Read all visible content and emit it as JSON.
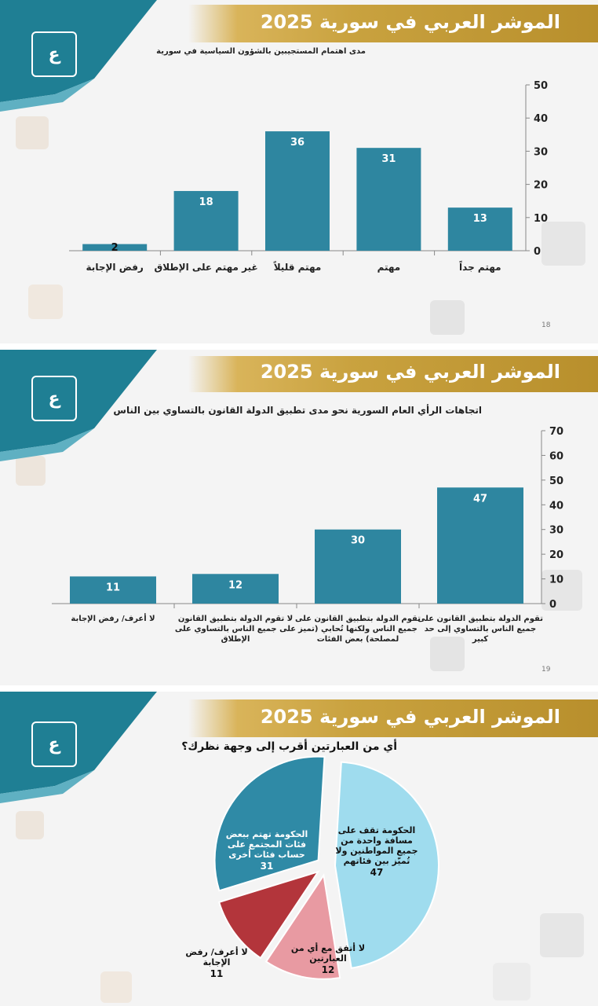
{
  "banner_title": "الموشر العربي في سورية 2025",
  "colors": {
    "bar": "#2e86a0",
    "pie_blue": "#2f8aa6",
    "pie_light": "#9fdcee",
    "pie_pink": "#e89aa2",
    "pie_red": "#b3353b",
    "gold": "#c9a23f",
    "teal": "#1f7f94"
  },
  "slides": [
    {
      "page": "18",
      "title": "مدى اهتمام المستجيبين بالشؤون السياسية في سورية"
    },
    {
      "page": "19",
      "title": "اتجاهات الرأي العام السورية نحو مدى تطبيق الدولة القانون بالتساوي بين الناس"
    },
    {
      "page": "",
      "title": "أي من العبارتين أقرب إلى وجهة نظرك؟"
    }
  ],
  "chart_data": [
    {
      "type": "bar",
      "title": "مدى اهتمام المستجيبين بالشؤون السياسية في سورية",
      "categories": [
        "رفض الإجابة",
        "غير مهتم على الإطلاق",
        "مهتم قليلاً",
        "مهتم",
        "مهتم جداً"
      ],
      "values": [
        2,
        18,
        36,
        31,
        13
      ],
      "ylim": [
        0,
        50
      ],
      "yticks": [
        0,
        10,
        20,
        30,
        40,
        50
      ],
      "axis_side": "right"
    },
    {
      "type": "bar",
      "title": "اتجاهات الرأي العام السورية نحو مدى تطبيق الدولة القانون بالتساوي بين الناس",
      "categories": [
        [
          "لا أعرف/ رفض الإجابة"
        ],
        [
          "لا تقوم الدولة بتطبيق القانون",
          "على جميع الناس بالتساوي على",
          "الإطلاق"
        ],
        [
          "تقوم الدولة بتطبيق القانون على",
          "جميع الناس ولكنها تُحابي (تميز",
          "لمصلحة) بعض الفئات"
        ],
        [
          "تقوم الدولة بتطبيق القانون على",
          "جميع الناس بالتساوي إلى حد",
          "كبير"
        ]
      ],
      "values": [
        11,
        12,
        30,
        47
      ],
      "ylim": [
        0,
        70
      ],
      "yticks": [
        0,
        10,
        20,
        30,
        40,
        50,
        60,
        70
      ],
      "axis_side": "right"
    },
    {
      "type": "pie",
      "title": "أي من العبارتين أقرب إلى وجهة نظرك؟",
      "slices": [
        {
          "label": [
            "الحكومة تقف على",
            "مسافة واحدة من",
            "جميع المواطنين ولا",
            "تُميّز بين فئاتهم"
          ],
          "value": 47,
          "color": "#9fdcee"
        },
        {
          "label": [
            "لا أتفق مع أي من",
            "العبارتين"
          ],
          "value": 12,
          "color": "#e89aa2"
        },
        {
          "label": [
            "لا أعرف/ رفض",
            "الإجابة"
          ],
          "value": 11,
          "color": "#b3353b"
        },
        {
          "label": [
            "الحكومة تهتم ببعض",
            "فئات المجتمع على",
            "حساب فئات أخرى"
          ],
          "value": 31,
          "color": "#2f8aa6"
        }
      ]
    }
  ]
}
